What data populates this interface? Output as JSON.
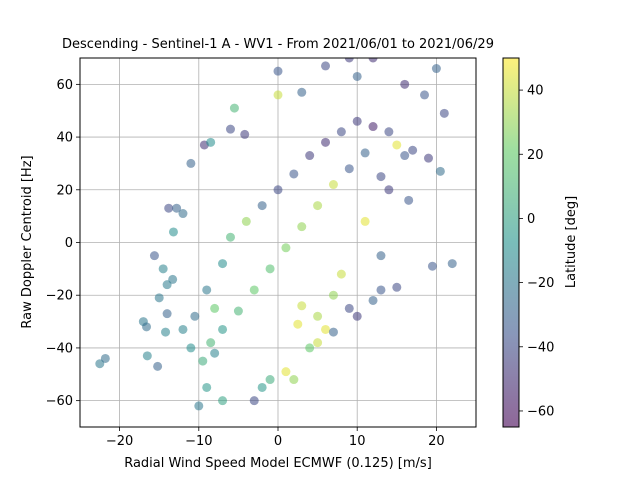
{
  "chart_data": {
    "type": "scatter",
    "title": "Descending - Sentinel-1 A - WV1 - From 2021/06/01 to 2021/06/29",
    "xlabel": "Radial Wind Speed Model ECMWF (0.125) [m/s]",
    "ylabel": "Raw Doppler Centroid [Hz]",
    "xlim": [
      -25,
      25
    ],
    "ylim": [
      -70,
      70
    ],
    "xticks": [
      -20,
      -10,
      0,
      10,
      20
    ],
    "xtick_labels": [
      "−20",
      "−10",
      "0",
      "10",
      "20"
    ],
    "yticks": [
      -60,
      -40,
      -20,
      0,
      20,
      40,
      60
    ],
    "ytick_labels": [
      "−60",
      "−40",
      "−20",
      "0",
      "20",
      "40",
      "60"
    ],
    "grid": true,
    "colorbar": {
      "label": "Latitude [deg]",
      "range": [
        -65,
        50
      ],
      "ticks": [
        -60,
        -40,
        -20,
        0,
        20,
        40
      ],
      "tick_labels": [
        "−60",
        "−40",
        "−20",
        "0",
        "20",
        "40"
      ],
      "colormap": "viridis",
      "alpha": 0.55
    },
    "colors": [
      "#440154",
      "#3b528b",
      "#21918c",
      "#5ec962",
      "#fde725"
    ],
    "points": [
      {
        "x": -22.5,
        "y": -46,
        "lat": -20
      },
      {
        "x": -21.8,
        "y": -44,
        "lat": -25
      },
      {
        "x": -16.5,
        "y": -43,
        "lat": -15
      },
      {
        "x": -17,
        "y": -30,
        "lat": -20
      },
      {
        "x": -15.2,
        "y": -47,
        "lat": -30
      },
      {
        "x": -16.6,
        "y": -32,
        "lat": -25
      },
      {
        "x": -14.2,
        "y": -34,
        "lat": -15
      },
      {
        "x": -14,
        "y": -16,
        "lat": -18
      },
      {
        "x": -13.3,
        "y": -14,
        "lat": -20
      },
      {
        "x": -13.8,
        "y": 13,
        "lat": -40
      },
      {
        "x": -12.8,
        "y": 13,
        "lat": -30
      },
      {
        "x": -13.2,
        "y": 4,
        "lat": -10
      },
      {
        "x": -12,
        "y": 11,
        "lat": -25
      },
      {
        "x": -11,
        "y": 30,
        "lat": -30
      },
      {
        "x": -9.3,
        "y": 37,
        "lat": -50
      },
      {
        "x": -8.5,
        "y": 38,
        "lat": -10
      },
      {
        "x": -6,
        "y": 43,
        "lat": -40
      },
      {
        "x": -4.2,
        "y": 41,
        "lat": -45
      },
      {
        "x": -5.5,
        "y": 51,
        "lat": 10
      },
      {
        "x": -15.6,
        "y": -5,
        "lat": -35
      },
      {
        "x": -14,
        "y": -27,
        "lat": -30
      },
      {
        "x": -15,
        "y": -21,
        "lat": -20
      },
      {
        "x": -14.5,
        "y": -10,
        "lat": -15
      },
      {
        "x": -2,
        "y": -55,
        "lat": -5
      },
      {
        "x": -3,
        "y": -60,
        "lat": -40
      },
      {
        "x": -1,
        "y": -52,
        "lat": 5
      },
      {
        "x": 1,
        "y": -49,
        "lat": 45
      },
      {
        "x": 2,
        "y": -52,
        "lat": 30
      },
      {
        "x": 4,
        "y": -40,
        "lat": 20
      },
      {
        "x": 5,
        "y": -38,
        "lat": 40
      },
      {
        "x": 6,
        "y": -33,
        "lat": 45
      },
      {
        "x": 7,
        "y": -34,
        "lat": -30
      },
      {
        "x": 9,
        "y": -25,
        "lat": -40
      },
      {
        "x": 10,
        "y": -28,
        "lat": -45
      },
      {
        "x": 12,
        "y": -22,
        "lat": -30
      },
      {
        "x": 13,
        "y": -18,
        "lat": -35
      },
      {
        "x": 15,
        "y": -17,
        "lat": -40
      },
      {
        "x": 19.5,
        "y": -9,
        "lat": -35
      },
      {
        "x": 22,
        "y": -8,
        "lat": -30
      },
      {
        "x": 20.5,
        "y": 27,
        "lat": -25
      },
      {
        "x": 21,
        "y": 49,
        "lat": -40
      },
      {
        "x": 20,
        "y": 66,
        "lat": -30
      },
      {
        "x": 18.5,
        "y": 56,
        "lat": -35
      },
      {
        "x": 19,
        "y": 32,
        "lat": -45
      },
      {
        "x": 17,
        "y": 35,
        "lat": -40
      },
      {
        "x": 12,
        "y": 70,
        "lat": -50
      },
      {
        "x": 9,
        "y": 70,
        "lat": -45
      },
      {
        "x": 6,
        "y": 67,
        "lat": -40
      },
      {
        "x": 0,
        "y": 65,
        "lat": -35
      },
      {
        "x": 0,
        "y": 56,
        "lat": 40
      },
      {
        "x": 3,
        "y": 57,
        "lat": -30
      },
      {
        "x": 10,
        "y": 63,
        "lat": -30
      },
      {
        "x": 16,
        "y": 60,
        "lat": -50
      },
      {
        "x": 15,
        "y": 37,
        "lat": 45
      },
      {
        "x": 16,
        "y": 33,
        "lat": -35
      },
      {
        "x": 13,
        "y": 25,
        "lat": -40
      },
      {
        "x": 14,
        "y": 20,
        "lat": -45
      },
      {
        "x": 16.5,
        "y": 16,
        "lat": -35
      },
      {
        "x": 11,
        "y": 8,
        "lat": 45
      },
      {
        "x": 13,
        "y": -5,
        "lat": -30
      },
      {
        "x": 8,
        "y": -12,
        "lat": 40
      },
      {
        "x": 7,
        "y": -20,
        "lat": 30
      },
      {
        "x": 5,
        "y": -28,
        "lat": 35
      },
      {
        "x": 2.5,
        "y": -31,
        "lat": 45
      },
      {
        "x": 3,
        "y": -24,
        "lat": 40
      },
      {
        "x": -8,
        "y": -25,
        "lat": 20
      },
      {
        "x": -11,
        "y": -40,
        "lat": -10
      },
      {
        "x": -9,
        "y": -55,
        "lat": -5
      },
      {
        "x": -7,
        "y": -60,
        "lat": 0
      },
      {
        "x": -10,
        "y": -62,
        "lat": -20
      },
      {
        "x": -9.5,
        "y": -45,
        "lat": 5
      },
      {
        "x": -8.5,
        "y": -38,
        "lat": 10
      },
      {
        "x": -12,
        "y": -33,
        "lat": -15
      },
      {
        "x": -10.5,
        "y": -28,
        "lat": -25
      },
      {
        "x": -9,
        "y": -18,
        "lat": -20
      },
      {
        "x": -7,
        "y": -8,
        "lat": -10
      },
      {
        "x": -6,
        "y": 2,
        "lat": 10
      },
      {
        "x": -4,
        "y": 8,
        "lat": 30
      },
      {
        "x": -2,
        "y": 14,
        "lat": -30
      },
      {
        "x": 0,
        "y": 20,
        "lat": -40
      },
      {
        "x": 2,
        "y": 26,
        "lat": -35
      },
      {
        "x": 4,
        "y": 33,
        "lat": -45
      },
      {
        "x": 6,
        "y": 38,
        "lat": -50
      },
      {
        "x": 8,
        "y": 42,
        "lat": -40
      },
      {
        "x": 10,
        "y": 46,
        "lat": -45
      },
      {
        "x": 12,
        "y": 44,
        "lat": -55
      },
      {
        "x": 14,
        "y": 42,
        "lat": -40
      },
      {
        "x": 11,
        "y": 34,
        "lat": -30
      },
      {
        "x": 9,
        "y": 28,
        "lat": -35
      },
      {
        "x": 7,
        "y": 22,
        "lat": 40
      },
      {
        "x": 5,
        "y": 14,
        "lat": 35
      },
      {
        "x": 3,
        "y": 6,
        "lat": 30
      },
      {
        "x": 1,
        "y": -2,
        "lat": 25
      },
      {
        "x": -1,
        "y": -10,
        "lat": 15
      },
      {
        "x": -3,
        "y": -18,
        "lat": 20
      },
      {
        "x": -5,
        "y": -26,
        "lat": 10
      },
      {
        "x": -7,
        "y": -33,
        "lat": -5
      },
      {
        "x": -8,
        "y": -42,
        "lat": -15
      }
    ]
  }
}
